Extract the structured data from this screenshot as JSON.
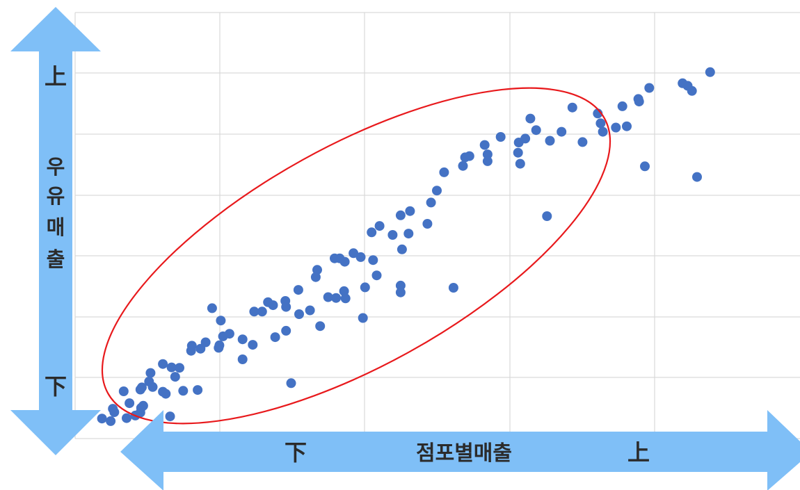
{
  "colors": {
    "arrow": "#7fbff7",
    "point": "#4472c4",
    "ellipse": "#e8191c",
    "grid": "#d9d9d9"
  },
  "labels": {
    "y_top": "上",
    "y_bottom": "下",
    "y_title": [
      "우",
      "유",
      "매",
      "출"
    ],
    "x_low": "下",
    "x_title": "점포별매출",
    "x_high": "上"
  },
  "chart_data": {
    "type": "scatter",
    "title": "",
    "xlabel": "점포별매출",
    "ylabel": "우유매출",
    "xlim": [
      0,
      10
    ],
    "ylim": [
      0,
      10
    ],
    "grid": true,
    "legend": "none",
    "annotation": "ellipse-around-trend",
    "x": [
      0.49,
      0.71,
      0.83,
      0.91,
      0.37,
      0.94,
      0.9,
      1.31,
      1.25,
      0.52,
      0.9,
      0.92,
      1.07,
      1.04,
      1.21,
      1.38,
      1.69,
      1.44,
      1.02,
      1.6,
      0.67,
      1.33,
      1.61,
      1.8,
      1.73,
      2.13,
      2.31,
      1.99,
      2.04,
      2.31,
      2.01,
      2.76,
      2.45,
      2.47,
      2.66,
      2.91,
      2.58,
      2.9,
      3.24,
      2.91,
      3.08,
      3.49,
      3.32,
      3.71,
      3.34,
      3.6,
      3.58,
      3.72,
      3.94,
      3.65,
      3.73,
      3.84,
      4.16,
      4.11,
      4.09,
      4.38,
      4.51,
      4.6,
      4.2,
      4.86,
      4.49,
      4.62,
      4.91,
      4.99,
      5.09,
      5.44,
      5.35,
      5.38,
      5.65,
      5.69,
      5.87,
      6.14,
      5.69,
      6.12,
      6.11,
      6.36,
      6.28,
      6.55,
      6.21,
      6.86,
      6.71,
      7.0,
      7.21,
      7.25,
      7.28,
      7.46,
      7.55,
      7.61,
      7.77,
      7.78,
      7.92,
      8.38,
      8.45,
      8.51,
      8.76,
      0.54,
      0.75,
      1.49,
      1.21,
      1.98,
      2.73,
      3.38,
      4.0,
      1.89,
      3.09,
      4.49,
      6.51,
      7.86,
      8.58,
      2.98,
      3.97,
      4.49,
      5.22
    ],
    "y": [
      0.41,
      0.48,
      0.54,
      0.72,
      0.47,
      0.77,
      0.61,
      0.52,
      1.05,
      0.7,
      1.15,
      1.2,
      1.21,
      1.54,
      1.1,
      1.45,
      1.14,
      1.66,
      1.34,
      2.06,
      1.11,
      1.67,
      2.18,
      2.26,
      2.11,
      2.46,
      1.86,
      2.19,
      2.4,
      2.33,
      2.77,
      2.38,
      2.2,
      2.98,
      3.2,
      2.53,
      2.98,
      3.23,
      3.01,
      3.09,
      3.49,
      3.32,
      3.79,
      3.46,
      3.96,
      3.3,
      4.23,
      4.15,
      4.26,
      4.23,
      3.29,
      4.35,
      3.83,
      4.19,
      4.84,
      4.78,
      4.44,
      4.81,
      4.99,
      5.04,
      5.24,
      5.34,
      5.54,
      5.82,
      6.25,
      6.63,
      6.4,
      6.6,
      6.89,
      6.67,
      7.08,
      6.45,
      6.51,
      6.95,
      6.71,
      7.24,
      7.51,
      6.99,
      7.04,
      7.77,
      7.2,
      6.96,
      7.63,
      7.4,
      7.2,
      7.3,
      7.8,
      7.33,
      7.97,
      7.91,
      8.23,
      8.34,
      8.28,
      8.16,
      8.6,
      0.62,
      0.83,
      1.12,
      1.75,
      2.13,
      3.13,
      2.64,
      3.55,
      3.06,
      2.92,
      3.59,
      5.22,
      6.39,
      6.14,
      1.3,
      2.83,
      3.43,
      3.54
    ]
  }
}
